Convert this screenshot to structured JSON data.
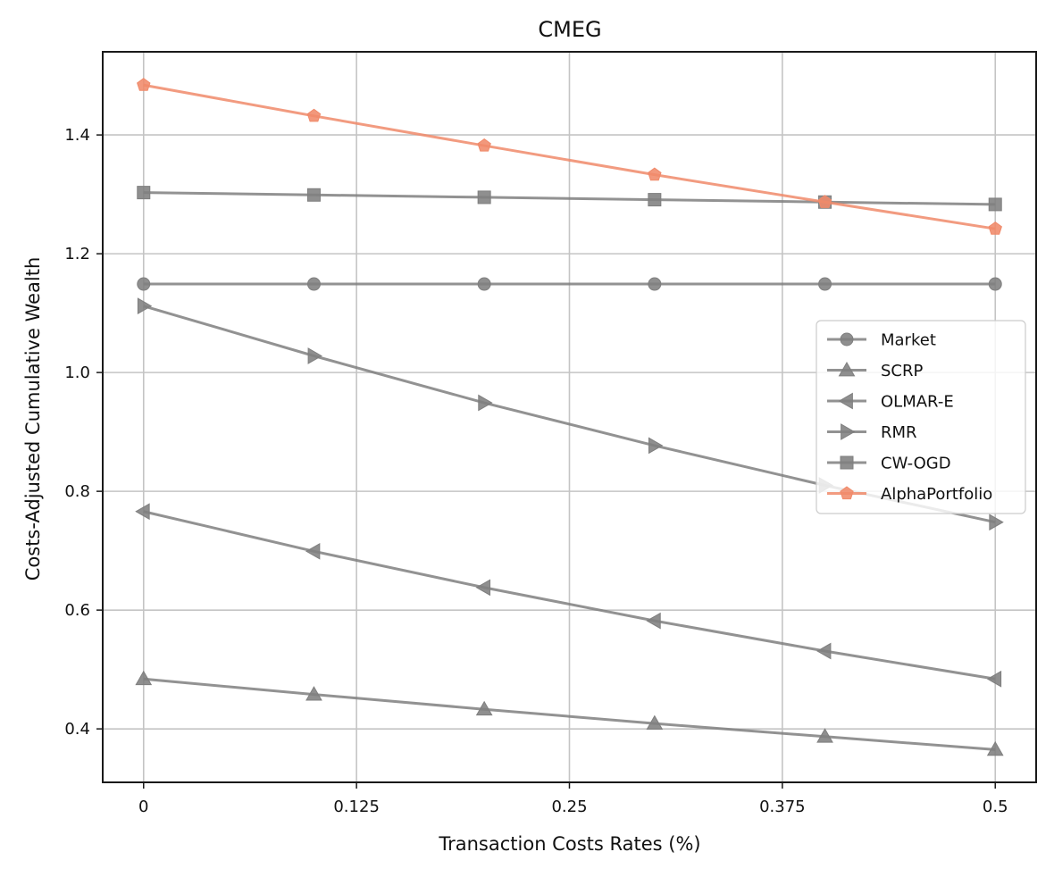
{
  "chart_data": {
    "type": "line",
    "title": "CMEG",
    "xlabel": "Transaction Costs Rates (%)",
    "ylabel": "Costs-Adjusted Cumulative Wealth",
    "x": [
      0,
      0.1,
      0.2,
      0.3,
      0.4,
      0.5
    ],
    "xlim": [
      -0.024,
      0.524
    ],
    "ylim": [
      0.31,
      1.54
    ],
    "xticks": [
      0,
      0.125,
      0.25,
      0.375,
      0.5
    ],
    "xtick_labels": [
      "0",
      "0.125",
      "0.25",
      "0.375",
      "0.5"
    ],
    "yticks": [
      0.4,
      0.6,
      0.8,
      1.0,
      1.2,
      1.4
    ],
    "ytick_labels": [
      "0.4",
      "0.6",
      "0.8",
      "1.0",
      "1.2",
      "1.4"
    ],
    "grid": true,
    "legend_position": "center-right",
    "series": [
      {
        "name": "Market",
        "marker": "circle",
        "color": "#7f7f7f",
        "values": [
          1.149,
          1.149,
          1.149,
          1.149,
          1.149,
          1.149
        ]
      },
      {
        "name": "SCRP",
        "marker": "triangle-up",
        "color": "#7f7f7f",
        "values": [
          0.484,
          0.458,
          0.433,
          0.409,
          0.387,
          0.365
        ]
      },
      {
        "name": "OLMAR-E",
        "marker": "triangle-left",
        "color": "#7f7f7f",
        "values": [
          0.766,
          0.699,
          0.638,
          0.582,
          0.531,
          0.484
        ]
      },
      {
        "name": "RMR",
        "marker": "triangle-right",
        "color": "#7f7f7f",
        "values": [
          1.112,
          1.028,
          0.949,
          0.877,
          0.81,
          0.748
        ]
      },
      {
        "name": "CW-OGD",
        "marker": "square",
        "color": "#7f7f7f",
        "values": [
          1.303,
          1.299,
          1.295,
          1.291,
          1.287,
          1.283
        ]
      },
      {
        "name": "AlphaPortfolio",
        "marker": "pentagon",
        "color": "#f08a6a",
        "values": [
          1.484,
          1.432,
          1.382,
          1.333,
          1.287,
          1.242
        ]
      }
    ]
  }
}
